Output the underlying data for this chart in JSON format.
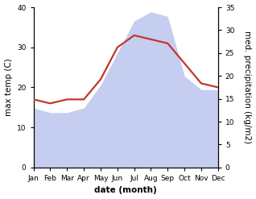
{
  "months": [
    "Jan",
    "Feb",
    "Mar",
    "Apr",
    "May",
    "Jun",
    "Jul",
    "Aug",
    "Sep",
    "Oct",
    "Nov",
    "Dec"
  ],
  "temperature": [
    17,
    16,
    17,
    17,
    22,
    30,
    33,
    32,
    31,
    26,
    21,
    20
  ],
  "precipitation": [
    13,
    12,
    12,
    13,
    18,
    25,
    32,
    34,
    33,
    20,
    17,
    17
  ],
  "temp_color": "#c0392b",
  "precip_color": "#c5cdf0",
  "left_ylim": [
    0,
    40
  ],
  "right_ylim": [
    0,
    35
  ],
  "left_yticks": [
    0,
    10,
    20,
    30,
    40
  ],
  "right_yticks": [
    0,
    5,
    10,
    15,
    20,
    25,
    30,
    35
  ],
  "ylabel_left": "max temp (C)",
  "ylabel_right": "med. precipitation (kg/m2)",
  "xlabel": "date (month)",
  "label_fontsize": 7.5,
  "tick_fontsize": 6.5,
  "line_width": 1.6
}
